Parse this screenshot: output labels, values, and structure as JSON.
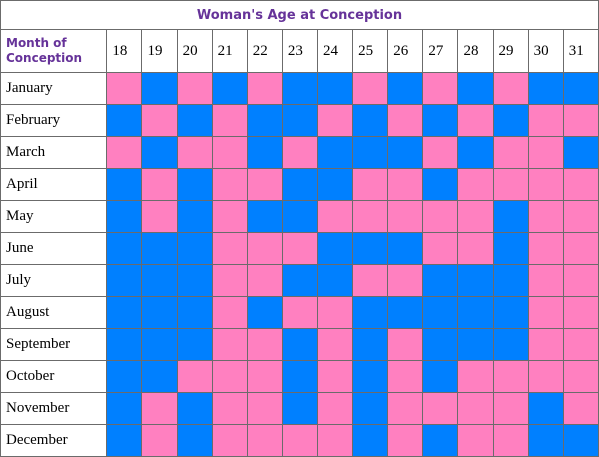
{
  "title": "Woman's Age at Conception",
  "corner_label_line1": "Month of",
  "corner_label_line2": "Conception",
  "colors": {
    "girl": "#ff80c0",
    "boy": "#0080ff"
  },
  "ages": [
    "18",
    "19",
    "20",
    "21",
    "22",
    "23",
    "24",
    "25",
    "26",
    "27",
    "28",
    "29",
    "30",
    "31"
  ],
  "rows": [
    {
      "month": "January",
      "cells": [
        "P",
        "B",
        "P",
        "B",
        "P",
        "B",
        "B",
        "P",
        "B",
        "P",
        "B",
        "P",
        "B",
        "B"
      ]
    },
    {
      "month": "February",
      "cells": [
        "B",
        "P",
        "B",
        "P",
        "B",
        "B",
        "P",
        "B",
        "P",
        "B",
        "P",
        "B",
        "P",
        "P"
      ]
    },
    {
      "month": "March",
      "cells": [
        "P",
        "B",
        "P",
        "P",
        "B",
        "P",
        "B",
        "B",
        "B",
        "P",
        "B",
        "P",
        "P",
        "B"
      ]
    },
    {
      "month": "April",
      "cells": [
        "B",
        "P",
        "B",
        "P",
        "P",
        "B",
        "B",
        "P",
        "P",
        "B",
        "P",
        "P",
        "P",
        "P"
      ]
    },
    {
      "month": "May",
      "cells": [
        "B",
        "P",
        "B",
        "P",
        "B",
        "B",
        "P",
        "P",
        "P",
        "P",
        "P",
        "B",
        "P",
        "P"
      ]
    },
    {
      "month": "June",
      "cells": [
        "B",
        "B",
        "B",
        "P",
        "P",
        "P",
        "B",
        "B",
        "B",
        "P",
        "P",
        "B",
        "P",
        "P"
      ]
    },
    {
      "month": "July",
      "cells": [
        "B",
        "B",
        "B",
        "P",
        "P",
        "B",
        "B",
        "P",
        "P",
        "B",
        "B",
        "B",
        "P",
        "P"
      ]
    },
    {
      "month": "August",
      "cells": [
        "B",
        "B",
        "B",
        "P",
        "B",
        "P",
        "P",
        "B",
        "B",
        "B",
        "B",
        "B",
        "P",
        "P"
      ]
    },
    {
      "month": "September",
      "cells": [
        "B",
        "B",
        "B",
        "P",
        "P",
        "B",
        "P",
        "B",
        "P",
        "B",
        "B",
        "B",
        "P",
        "P"
      ]
    },
    {
      "month": "October",
      "cells": [
        "B",
        "B",
        "P",
        "P",
        "P",
        "B",
        "P",
        "B",
        "P",
        "B",
        "P",
        "P",
        "P",
        "P"
      ]
    },
    {
      "month": "November",
      "cells": [
        "B",
        "P",
        "B",
        "P",
        "P",
        "B",
        "P",
        "B",
        "P",
        "P",
        "P",
        "P",
        "B",
        "P"
      ]
    },
    {
      "month": "December",
      "cells": [
        "B",
        "P",
        "B",
        "P",
        "P",
        "P",
        "P",
        "B",
        "P",
        "B",
        "P",
        "P",
        "B",
        "B"
      ]
    }
  ]
}
